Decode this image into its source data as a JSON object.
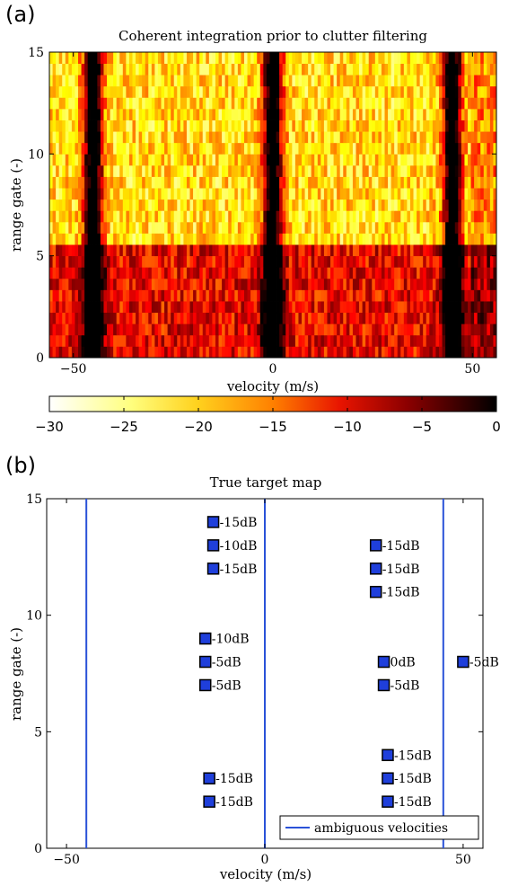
{
  "chart_data": [
    {
      "panel_label": "(a)",
      "type": "heatmap",
      "title": "Coherent integration prior to clutter filtering",
      "xlabel": "velocity (m/s)",
      "ylabel": "range gate (-)",
      "xlim": [
        -56,
        56
      ],
      "ylim": [
        0,
        15
      ],
      "xticks": [
        -50,
        0,
        50
      ],
      "yticks": [
        0,
        5,
        10,
        15
      ],
      "grid": false,
      "colormap": "hot (reversed): white at -30, yellow, orange, red, black at 0",
      "colorbar": {
        "orientation": "horizontal",
        "placement": "below",
        "range": [
          -30,
          0
        ],
        "ticks": [
          -30,
          -25,
          -20,
          -15,
          -10,
          -5,
          0
        ]
      },
      "range_gates": 15,
      "dark_bands_velocity": [
        -45,
        0,
        45
      ],
      "bright_region_gates": [
        6,
        15
      ],
      "dark_region_gates": [
        0,
        5.5
      ]
    },
    {
      "panel_label": "(b)",
      "type": "scatter",
      "title": "True target map",
      "xlabel": "velocity (m/s)",
      "ylabel": "range gate (-)",
      "xlim": [
        -55,
        55
      ],
      "ylim": [
        0,
        15
      ],
      "xticks": [
        -50,
        0,
        50
      ],
      "yticks": [
        0,
        5,
        10,
        15
      ],
      "grid": false,
      "marker_color": "#1f3fdb",
      "line_color": "#2a52d8",
      "vertical_lines": [
        -45,
        0,
        45
      ],
      "legend": {
        "label": "ambiguous velocities",
        "placement": "bottom-right"
      },
      "points": [
        {
          "x": -13,
          "y": 14,
          "label": "-15dB"
        },
        {
          "x": -13,
          "y": 13,
          "label": "-10dB"
        },
        {
          "x": -13,
          "y": 12,
          "label": "-15dB"
        },
        {
          "x": -15,
          "y": 9,
          "label": "-10dB"
        },
        {
          "x": -15,
          "y": 8,
          "label": "-5dB"
        },
        {
          "x": -15,
          "y": 7,
          "label": "-5dB"
        },
        {
          "x": -14,
          "y": 3,
          "label": "-15dB"
        },
        {
          "x": -14,
          "y": 2,
          "label": "-15dB"
        },
        {
          "x": 28,
          "y": 13,
          "label": "-15dB"
        },
        {
          "x": 28,
          "y": 12,
          "label": "-15dB"
        },
        {
          "x": 28,
          "y": 11,
          "label": "-15dB"
        },
        {
          "x": 30,
          "y": 8,
          "label": "0dB"
        },
        {
          "x": 30,
          "y": 7,
          "label": "-5dB"
        },
        {
          "x": 31,
          "y": 4,
          "label": "-15dB"
        },
        {
          "x": 31,
          "y": 3,
          "label": "-15dB"
        },
        {
          "x": 31,
          "y": 2,
          "label": "-15dB"
        },
        {
          "x": 50,
          "y": 8,
          "label": "-5dB"
        }
      ]
    }
  ]
}
